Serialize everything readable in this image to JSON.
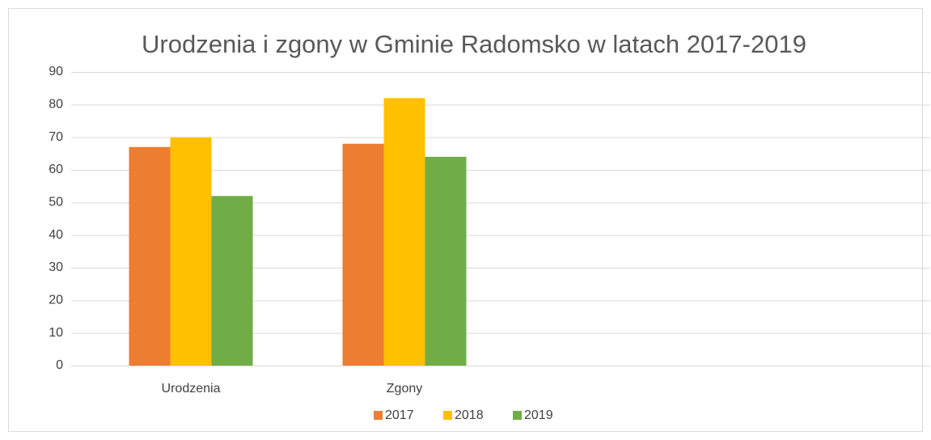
{
  "chart_data": {
    "type": "bar",
    "title": "Urodzenia i zgony w Gminie Radomsko w latach 2017-2019",
    "categories": [
      "Urodzenia",
      "Zgony",
      null,
      null
    ],
    "series": [
      {
        "name": "2017",
        "color": "#ed7d31",
        "values": [
          67,
          68,
          null,
          null
        ]
      },
      {
        "name": "2018",
        "color": "#ffc000",
        "values": [
          70,
          82,
          null,
          null
        ]
      },
      {
        "name": "2019",
        "color": "#70ad47",
        "values": [
          52,
          64,
          null,
          null
        ]
      }
    ],
    "ylim": [
      0,
      90
    ],
    "yticks": [
      0,
      10,
      20,
      30,
      40,
      50,
      60,
      70,
      80,
      90
    ],
    "grid": true,
    "legend": "bottom"
  }
}
